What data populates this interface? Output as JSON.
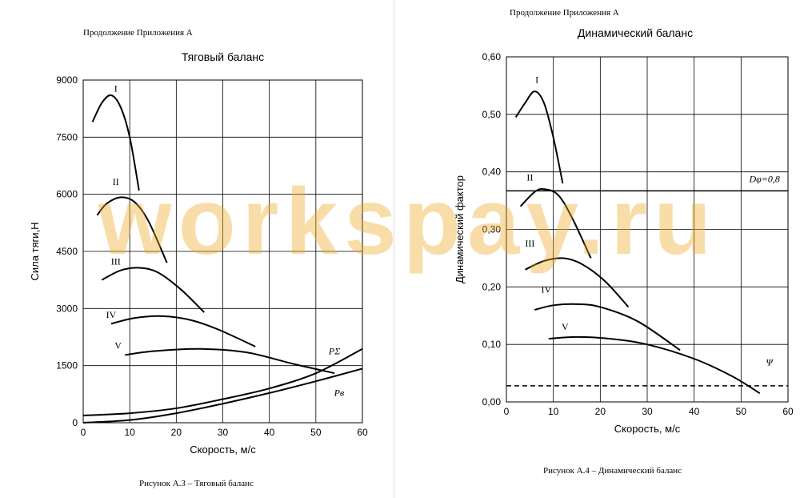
{
  "watermark": "workspay.ru",
  "colors": {
    "watermark": "#f0aa28",
    "grid": "#000000",
    "curve": "#000000"
  },
  "left_page": {
    "header": "Продолжение Приложения А",
    "caption": "Рисунок  А.3 – Тяговый баланс"
  },
  "right_page": {
    "header": "Продолжение Приложения А",
    "caption": "Рисунок  А.4 – Динамический баланс"
  },
  "chart_data": [
    {
      "type": "line",
      "title": "Тяговый баланс",
      "xlabel": "Скорость, м/с",
      "ylabel": "Сила тяги,Н",
      "xlim": [
        0,
        60
      ],
      "ylim": [
        0,
        9000
      ],
      "xticks": [
        0,
        10,
        20,
        30,
        40,
        50,
        60
      ],
      "yticks": [
        0,
        1500,
        3000,
        4500,
        6000,
        7500,
        9000
      ],
      "grid": true,
      "series": [
        {
          "name": "I",
          "x": [
            2,
            4,
            6,
            8,
            10,
            12
          ],
          "y": [
            7900,
            8400,
            8600,
            8300,
            7500,
            6100
          ]
        },
        {
          "name": "II",
          "x": [
            3,
            5,
            8,
            11,
            14,
            18
          ],
          "y": [
            5450,
            5750,
            5920,
            5800,
            5300,
            4200
          ]
        },
        {
          "name": "III",
          "x": [
            4,
            8,
            12,
            16,
            21,
            26
          ],
          "y": [
            3750,
            4000,
            4070,
            3950,
            3500,
            2900
          ]
        },
        {
          "name": "IV",
          "x": [
            6,
            11,
            17,
            23,
            29,
            37
          ],
          "y": [
            2600,
            2750,
            2800,
            2700,
            2450,
            2000
          ]
        },
        {
          "name": "V",
          "x": [
            9,
            15,
            25,
            35,
            45,
            54
          ],
          "y": [
            1780,
            1880,
            1940,
            1850,
            1550,
            1300
          ]
        },
        {
          "name": "PΣ",
          "x": [
            0,
            10,
            20,
            30,
            40,
            50,
            60
          ],
          "y": [
            190,
            250,
            380,
            620,
            900,
            1300,
            1940
          ]
        },
        {
          "name": "Pв",
          "x": [
            0,
            10,
            20,
            30,
            40,
            50,
            60
          ],
          "y": [
            0,
            70,
            250,
            500,
            780,
            1090,
            1420
          ]
        }
      ]
    },
    {
      "type": "line",
      "title": "Динамический баланс",
      "xlabel": "Скорость, м/с",
      "ylabel": "Динамический фактор",
      "xlim": [
        0,
        60
      ],
      "ylim": [
        0,
        0.6
      ],
      "xticks": [
        0,
        10,
        20,
        30,
        40,
        50,
        60
      ],
      "yticks": [
        "0,00",
        "0,10",
        "0,20",
        "0,30",
        "0,40",
        "0,50",
        "0,60"
      ],
      "grid": true,
      "series": [
        {
          "name": "I",
          "x": [
            2,
            4,
            6,
            8,
            10,
            12
          ],
          "y": [
            0.495,
            0.52,
            0.54,
            0.52,
            0.46,
            0.38
          ]
        },
        {
          "name": "II",
          "x": [
            3,
            6,
            8,
            11,
            14,
            18
          ],
          "y": [
            0.34,
            0.365,
            0.37,
            0.36,
            0.32,
            0.25
          ]
        },
        {
          "name": "III",
          "x": [
            4,
            8,
            12,
            16,
            21,
            26
          ],
          "y": [
            0.23,
            0.245,
            0.25,
            0.24,
            0.21,
            0.165
          ]
        },
        {
          "name": "IV",
          "x": [
            6,
            10,
            15,
            20,
            28,
            37
          ],
          "y": [
            0.16,
            0.168,
            0.17,
            0.165,
            0.14,
            0.09
          ]
        },
        {
          "name": "V",
          "x": [
            9,
            15,
            22,
            30,
            40,
            48,
            54
          ],
          "y": [
            0.11,
            0.113,
            0.11,
            0.1,
            0.075,
            0.045,
            0.015
          ]
        }
      ],
      "reference_lines": [
        {
          "label": "Dφ=0,8",
          "y": 0.367,
          "style": "solid"
        },
        {
          "label": "Ψ",
          "y": 0.028,
          "style": "dashed"
        }
      ]
    }
  ]
}
